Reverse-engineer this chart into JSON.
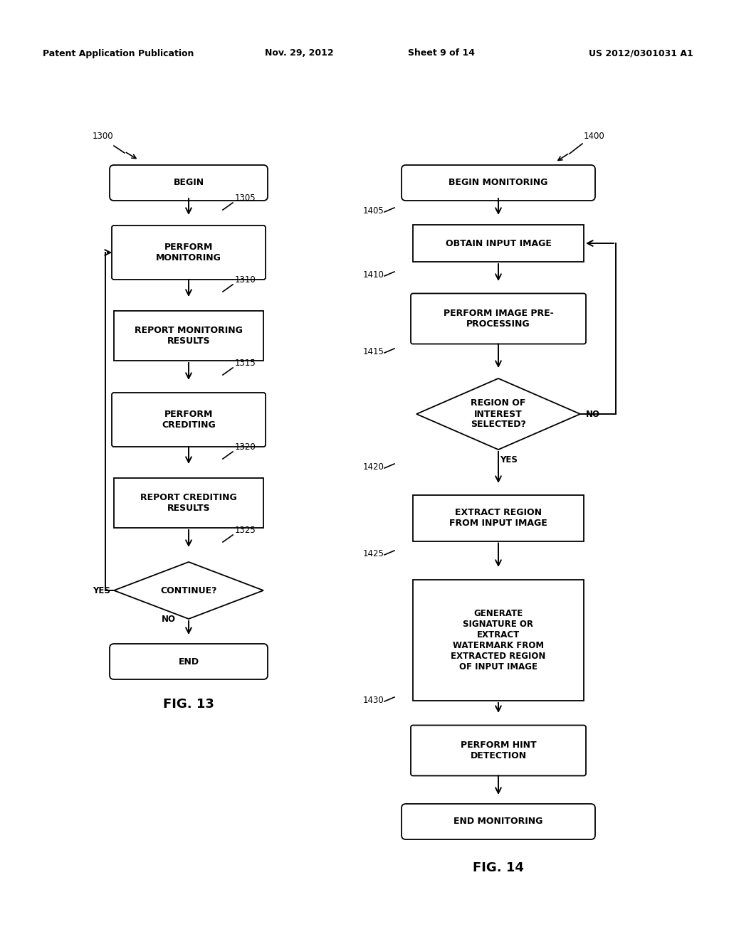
{
  "bg_color": "#ffffff",
  "header_text": "Patent Application Publication",
  "header_date": "Nov. 29, 2012",
  "header_sheet": "Sheet 9 of 14",
  "header_patent": "US 2012/0301031 A1",
  "fig13_label": "FIG. 13",
  "fig14_label": "FIG. 14"
}
